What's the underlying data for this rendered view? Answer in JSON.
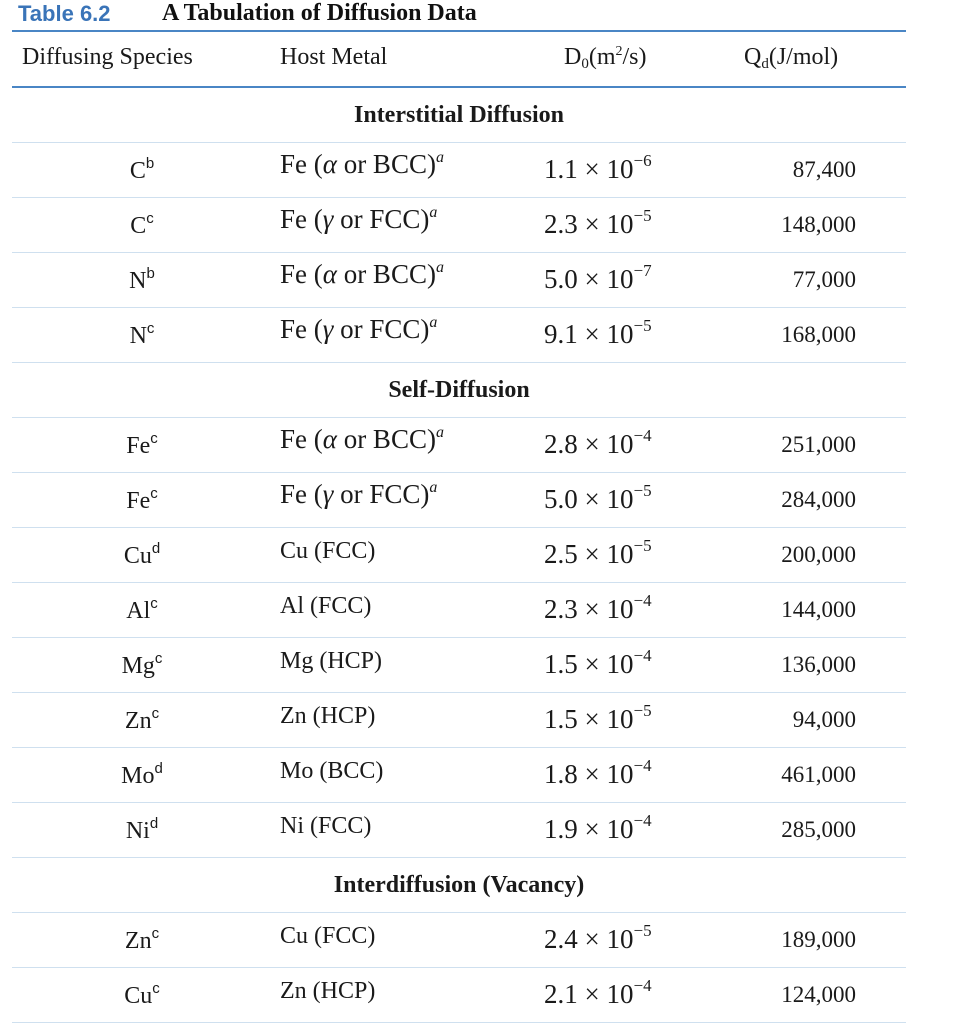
{
  "title": {
    "number": "Table 6.2",
    "text": "A Tabulation of Diffusion Data"
  },
  "headers": {
    "species": "Diffusing Species",
    "host": "Host Metal",
    "d0_base": "D",
    "d0_sub": "0",
    "d0_unit_pre": "(m",
    "d0_unit_sup": "2",
    "d0_unit_post": "/s)",
    "qd_base": "Q",
    "qd_sub": "d",
    "qd_unit": "(J/mol)"
  },
  "sections": [
    {
      "label": "Interstitial Diffusion",
      "rows": [
        {
          "species": "C",
          "note": "b",
          "host_text": "Fe (",
          "host_greek": "α",
          "host_rest": " or BCC)",
          "host_note": "a",
          "d0_mant": "1.1 × 10",
          "d0_exp": "−6",
          "qd": "87,400"
        },
        {
          "species": "C",
          "note": "c",
          "host_text": "Fe (",
          "host_greek": "γ",
          "host_rest": " or FCC)",
          "host_note": "a",
          "d0_mant": "2.3 × 10",
          "d0_exp": "−5",
          "qd": "148,000"
        },
        {
          "species": "N",
          "note": "b",
          "host_text": "Fe (",
          "host_greek": "α",
          "host_rest": " or BCC)",
          "host_note": "a",
          "d0_mant": "5.0 × 10",
          "d0_exp": "−7",
          "qd": "77,000"
        },
        {
          "species": "N",
          "note": "c",
          "host_text": "Fe (",
          "host_greek": "γ",
          "host_rest": " or FCC)",
          "host_note": "a",
          "d0_mant": "9.1 × 10",
          "d0_exp": "−5",
          "qd": "168,000"
        }
      ]
    },
    {
      "label": "Self-Diffusion",
      "rows": [
        {
          "species": "Fe",
          "note": "c",
          "host_text": "Fe (",
          "host_greek": "α",
          "host_rest": " or BCC)",
          "host_note": "a",
          "d0_mant": "2.8 × 10",
          "d0_exp": "−4",
          "qd": "251,000"
        },
        {
          "species": "Fe",
          "note": "c",
          "host_text": "Fe (",
          "host_greek": "γ",
          "host_rest": " or FCC)",
          "host_note": "a",
          "d0_mant": "5.0 × 10",
          "d0_exp": "−5",
          "qd": "284,000"
        },
        {
          "species": "Cu",
          "note": "d",
          "host_text": "Cu (FCC)",
          "host_greek": "",
          "host_rest": "",
          "host_note": "",
          "d0_mant": "2.5 × 10",
          "d0_exp": "−5",
          "qd": "200,000"
        },
        {
          "species": "Al",
          "note": "c",
          "host_text": "Al (FCC)",
          "host_greek": "",
          "host_rest": "",
          "host_note": "",
          "d0_mant": "2.3 × 10",
          "d0_exp": "−4",
          "qd": "144,000"
        },
        {
          "species": "Mg",
          "note": "c",
          "host_text": "Mg (HCP)",
          "host_greek": "",
          "host_rest": "",
          "host_note": "",
          "d0_mant": "1.5 × 10",
          "d0_exp": "−4",
          "qd": "136,000"
        },
        {
          "species": "Zn",
          "note": "c",
          "host_text": "Zn (HCP)",
          "host_greek": "",
          "host_rest": "",
          "host_note": "",
          "d0_mant": "1.5 × 10",
          "d0_exp": "−5",
          "qd": "94,000"
        },
        {
          "species": "Mo",
          "note": "d",
          "host_text": "Mo (BCC)",
          "host_greek": "",
          "host_rest": "",
          "host_note": "",
          "d0_mant": "1.8 × 10",
          "d0_exp": "−4",
          "qd": "461,000"
        },
        {
          "species": "Ni",
          "note": "d",
          "host_text": "Ni (FCC)",
          "host_greek": "",
          "host_rest": "",
          "host_note": "",
          "d0_mant": "1.9 × 10",
          "d0_exp": "−4",
          "qd": "285,000"
        }
      ]
    },
    {
      "label": "Interdiffusion (Vacancy)",
      "rows": [
        {
          "species": "Zn",
          "note": "c",
          "host_text": "Cu (FCC)",
          "host_greek": "",
          "host_rest": "",
          "host_note": "",
          "d0_mant": "2.4 × 10",
          "d0_exp": "−5",
          "qd": "189,000"
        },
        {
          "species": "Cu",
          "note": "c",
          "host_text": "Zn (HCP)",
          "host_greek": "",
          "host_rest": "",
          "host_note": "",
          "d0_mant": "2.1 × 10",
          "d0_exp": "−4",
          "qd": "124,000"
        }
      ]
    }
  ]
}
